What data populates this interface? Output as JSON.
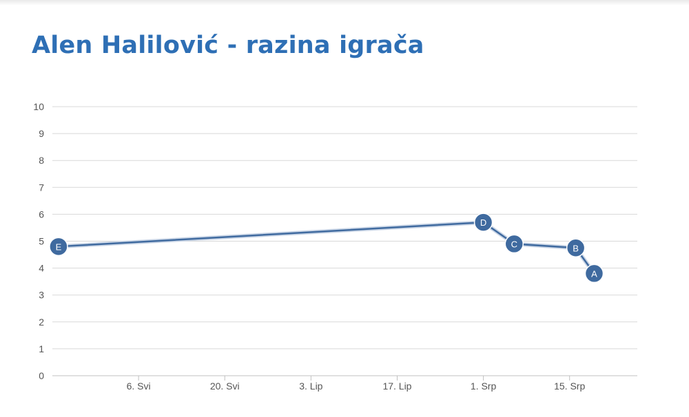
{
  "chart_data": {
    "type": "line",
    "title": "Alen Halilović - razina igrača",
    "xlabel": "",
    "ylabel": "",
    "ylim": [
      0,
      10
    ],
    "yticks": [
      "0",
      "1",
      "2",
      "3",
      "4",
      "5",
      "6",
      "7",
      "8",
      "9",
      "10"
    ],
    "xlim": [
      "2013-04-22",
      "2013-07-26"
    ],
    "xticks": [
      {
        "date": "2013-05-06",
        "label": "6. Svi"
      },
      {
        "date": "2013-05-20",
        "label": "20. Svi"
      },
      {
        "date": "2013-06-03",
        "label": "3. Lip"
      },
      {
        "date": "2013-06-17",
        "label": "17. Lip"
      },
      {
        "date": "2013-07-01",
        "label": "1. Srp"
      },
      {
        "date": "2013-07-15",
        "label": "15. Srp"
      }
    ],
    "grid": true,
    "line_color": "#3f6a9f",
    "points": [
      {
        "label": "E",
        "date": "2013-04-23",
        "value": 4.8
      },
      {
        "label": "D",
        "date": "2013-07-01",
        "value": 5.7
      },
      {
        "label": "C",
        "date": "2013-07-06",
        "value": 4.9
      },
      {
        "label": "B",
        "date": "2013-07-16",
        "value": 4.75
      },
      {
        "label": "A",
        "date": "2013-07-19",
        "value": 3.8
      }
    ]
  }
}
